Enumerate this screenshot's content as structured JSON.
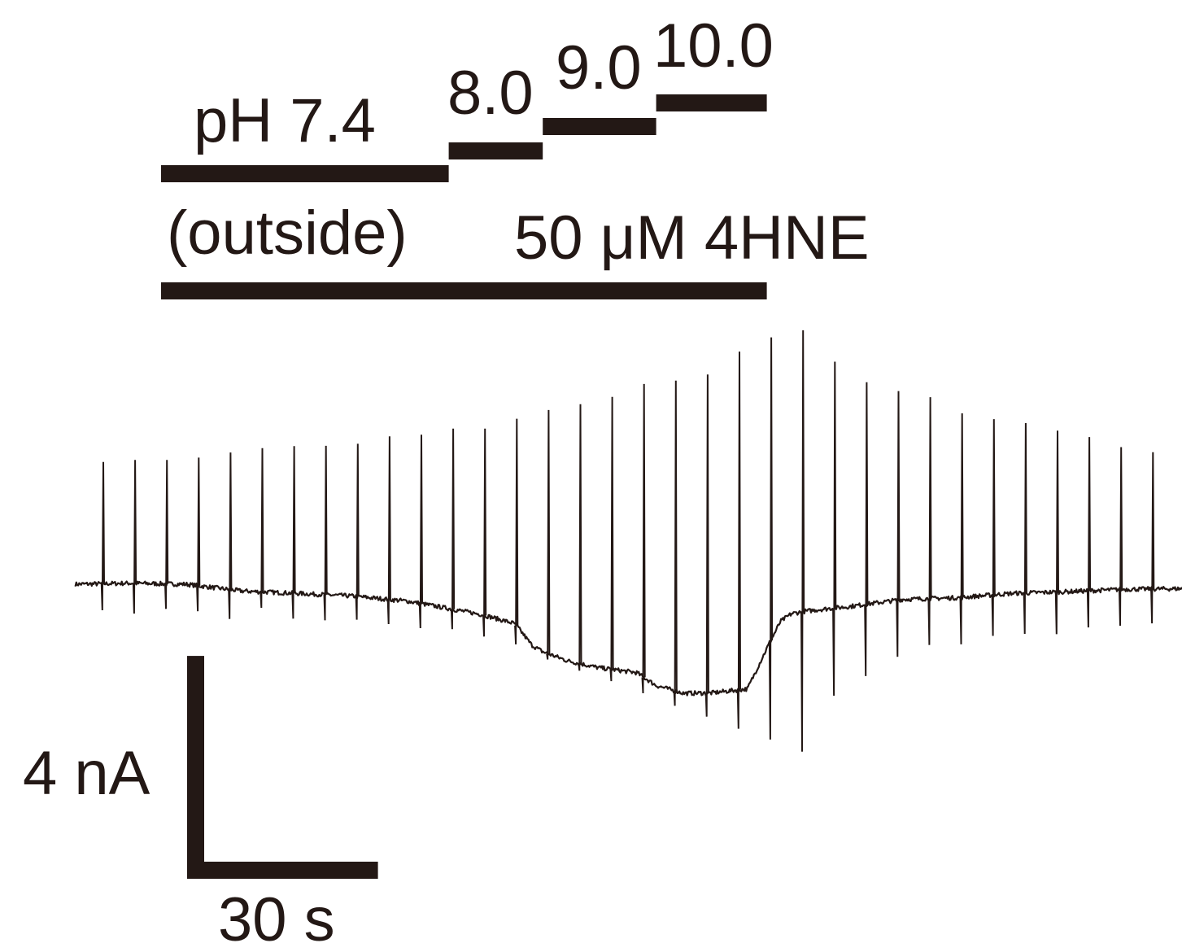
{
  "chart_data": {
    "type": "line",
    "title": "",
    "xlabel": "",
    "ylabel": "",
    "color": "#231815",
    "protocol": {
      "ph_label": "pH 7.4",
      "ph_sub": "(outside)",
      "ph_steps": [
        {
          "label": "pH 7.4",
          "start_s": 0,
          "end_s": 104
        },
        {
          "label": "8.0",
          "start_s": 104,
          "end_s": 138
        },
        {
          "label": "9.0",
          "start_s": 138,
          "end_s": 179
        },
        {
          "label": "10.0",
          "start_s": 179,
          "end_s": 219
        }
      ],
      "drug": {
        "label": "50 μM 4HNE",
        "start_s": 0,
        "end_s": 219
      }
    },
    "scale_bar": {
      "current_label": "4 nA",
      "current_nA": 4,
      "time_label": "30 s",
      "time_s": 30
    },
    "holding_current_nA": {
      "t_s": [
        -31,
        -11,
        9,
        29,
        49,
        69,
        89,
        104,
        116,
        128,
        134,
        138,
        147,
        158,
        172,
        179,
        189,
        199,
        212,
        219,
        224,
        228,
        233,
        238,
        248,
        268,
        288,
        308,
        328,
        348,
        371
      ],
      "value": [
        0,
        0.03,
        0,
        -0.2,
        -0.27,
        -0.35,
        -0.5,
        -0.72,
        -0.9,
        -1.17,
        -1.8,
        -2.0,
        -2.27,
        -2.47,
        -2.62,
        -3.0,
        -3.23,
        -3.22,
        -3.1,
        -1.9,
        -1.1,
        -0.87,
        -0.8,
        -0.75,
        -0.67,
        -0.45,
        -0.4,
        -0.27,
        -0.22,
        -0.15,
        -0.13
      ]
    },
    "ramp_pulses": {
      "t_s": [
        -21,
        -9.5,
        2,
        13.5,
        25,
        36.5,
        48,
        59.5,
        71,
        82.5,
        94,
        105.5,
        117,
        128.5,
        140,
        151.5,
        163,
        174.5,
        186,
        197.5,
        209,
        220.5,
        232,
        243.5,
        255,
        266.5,
        278,
        289.5,
        301,
        312.5,
        324,
        335.5,
        347,
        358.5
      ],
      "peak_outward_nA": [
        3.62,
        3.68,
        3.68,
        3.75,
        3.9,
        4.03,
        4.09,
        4.1,
        4.16,
        4.38,
        4.43,
        4.61,
        4.61,
        4.9,
        5.16,
        5.33,
        5.55,
        5.93,
        6.03,
        6.21,
        6.89,
        7.31,
        7.52,
        6.59,
        5.98,
        5.72,
        5.54,
        5.06,
        4.89,
        4.77,
        4.55,
        4.36,
        4.06,
        3.91
      ],
      "peak_inward_nA": [
        -0.77,
        -0.87,
        -0.73,
        -0.8,
        -1.03,
        -0.7,
        -1.02,
        -1.07,
        -1.05,
        -1.18,
        -1.3,
        -1.33,
        -1.55,
        -1.78,
        -2.23,
        -2.56,
        -2.87,
        -3.23,
        -3.6,
        -3.92,
        -4.28,
        -4.6,
        -4.96,
        -3.3,
        -2.72,
        -2.15,
        -1.8,
        -1.78,
        -1.53,
        -1.47,
        -1.48,
        -1.28,
        -1.23,
        -1.16
      ]
    }
  }
}
